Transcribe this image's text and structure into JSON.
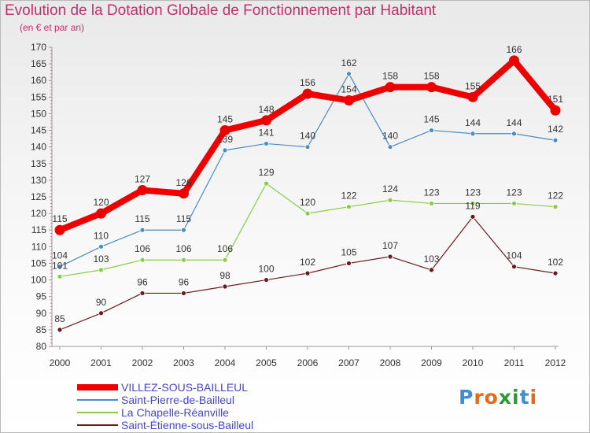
{
  "chart_data": {
    "type": "line",
    "title": "Evolution de la Dotation Globale de Fonctionnement par Habitant",
    "subtitle": "(en € et par an)",
    "xlabel": "",
    "ylabel": "",
    "categories": [
      "2000",
      "2001",
      "2002",
      "2003",
      "2004",
      "2005",
      "2006",
      "2007",
      "2008",
      "2009",
      "2010",
      "2011",
      "2012"
    ],
    "ylim": [
      80,
      170
    ],
    "yticks": [
      80,
      85,
      90,
      95,
      100,
      105,
      110,
      115,
      120,
      125,
      130,
      135,
      140,
      145,
      150,
      155,
      160,
      165,
      170
    ],
    "grid": false,
    "legend_position": "bottom-left",
    "series": [
      {
        "name": "VILLEZ-SOUS-BAILLEUL",
        "color": "#ee0000",
        "style": "bold",
        "values": [
          115,
          120,
          127,
          126,
          145,
          148,
          156,
          154,
          158,
          158,
          155,
          166,
          151
        ],
        "labels": [
          "115",
          "120",
          "127",
          "126",
          "145",
          "148",
          "156",
          "154",
          "158",
          "158",
          "155",
          "166",
          "151"
        ]
      },
      {
        "name": "Saint-Pierre-de-Bailleul",
        "color": "#4a8cc5",
        "style": "thin",
        "values": [
          104,
          110,
          115,
          115,
          139,
          141,
          140,
          162,
          140,
          145,
          144,
          144,
          142
        ],
        "labels": [
          "104",
          "110",
          "115",
          "115",
          "139",
          "141",
          "140",
          "162",
          "140",
          "145",
          "144",
          "144",
          "142"
        ]
      },
      {
        "name": "La Chapelle-Réanville",
        "color": "#88cc44",
        "style": "thin",
        "values": [
          101,
          103,
          106,
          106,
          106,
          129,
          120,
          122,
          124,
          123,
          123,
          123,
          122
        ],
        "labels": [
          "101",
          "103",
          "106",
          "106",
          "106",
          "129",
          "120",
          "122",
          "124",
          "123",
          "123",
          "123",
          "122"
        ]
      },
      {
        "name": "Saint-Étienne-sous-Bailleul",
        "color": "#6b1a1a",
        "style": "thin",
        "values": [
          85,
          90,
          96,
          96,
          98,
          100,
          102,
          105,
          107,
          103,
          119,
          104,
          102
        ],
        "labels": [
          "85",
          "90",
          "96",
          "96",
          "98",
          "100",
          "102",
          "105",
          "107",
          "103",
          "119",
          "104",
          "102"
        ]
      }
    ]
  },
  "logo": {
    "text": "Proxiti",
    "letter_colors": [
      "#3a8fd6",
      "#e36a1e",
      "#e36a1e",
      "#2a9a3a",
      "#2a9a3a",
      "#3a8fd6",
      "#e36a1e"
    ]
  }
}
